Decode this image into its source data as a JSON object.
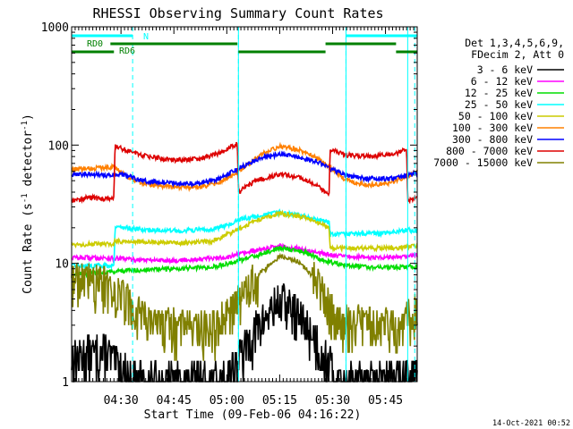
{
  "chart_data": {
    "type": "line",
    "title": "RHESSI Observing Summary Count Rates",
    "xlabel": "Start Time (09-Feb-06 04:16:22)",
    "ylabel": "Count Rate (s",
    "ylabel_sup1": "-1",
    "ylabel_mid": " detector",
    "ylabel_sup2": "-1",
    "ylabel_end": ")",
    "y_scale": "log",
    "x_range_minutes": [
      0,
      98
    ],
    "ylim": [
      1,
      1000
    ],
    "x_ticks": [
      {
        "minute": 14,
        "label": "04:30"
      },
      {
        "minute": 29,
        "label": "04:45"
      },
      {
        "minute": 44,
        "label": "05:00"
      },
      {
        "minute": 59,
        "label": "05:15"
      },
      {
        "minute": 74,
        "label": "05:30"
      },
      {
        "minute": 89,
        "label": "05:45"
      }
    ],
    "y_ticks": [
      {
        "value": 1,
        "label": "1"
      },
      {
        "value": 10,
        "label": "10"
      },
      {
        "value": 100,
        "label": "100"
      },
      {
        "value": 1000,
        "label": "1000"
      }
    ],
    "legend_header": [
      "Det 1,3,4,5,6,9,",
      "FDecim 2, Att 0"
    ],
    "series": [
      {
        "name": "3 - 6 keV",
        "color": "#000000",
        "points": [
          [
            0,
            1.6
          ],
          [
            5,
            1.7
          ],
          [
            10,
            1.8
          ],
          [
            12,
            1.5
          ],
          [
            18,
            1.0
          ],
          [
            30,
            1.0
          ],
          [
            43,
            1.0
          ],
          [
            48,
            1.7
          ],
          [
            53,
            3.0
          ],
          [
            58,
            4.5
          ],
          [
            60,
            4.8
          ],
          [
            63,
            4.0
          ],
          [
            68,
            2.6
          ],
          [
            72,
            1.6
          ],
          [
            76,
            1.0
          ],
          [
            88,
            1.0
          ],
          [
            95,
            1.2
          ],
          [
            98,
            1.3
          ]
        ]
      },
      {
        "name": "6 - 12 keV",
        "color": "#ff00ff",
        "points": [
          [
            0,
            11.2
          ],
          [
            10,
            11.1
          ],
          [
            12,
            11.0
          ],
          [
            20,
            10.7
          ],
          [
            30,
            10.6
          ],
          [
            40,
            11.0
          ],
          [
            44,
            11.3
          ],
          [
            52,
            12.8
          ],
          [
            59,
            14.0
          ],
          [
            65,
            13.2
          ],
          [
            72,
            12.0
          ],
          [
            76,
            11.5
          ],
          [
            86,
            11.2
          ],
          [
            95,
            11.5
          ],
          [
            98,
            11.8
          ]
        ]
      },
      {
        "name": "12 - 25 keV",
        "color": "#00dd00",
        "points": [
          [
            0,
            8.0
          ],
          [
            12,
            8.6
          ],
          [
            20,
            8.8
          ],
          [
            40,
            9.3
          ],
          [
            50,
            11.0
          ],
          [
            59,
            13.5
          ],
          [
            65,
            12.8
          ],
          [
            72,
            10.5
          ],
          [
            78,
            9.5
          ],
          [
            90,
            9.2
          ],
          [
            98,
            9.4
          ]
        ]
      },
      {
        "name": "25 - 50 keV",
        "color": "#00ffff",
        "points": [
          [
            0,
            9.5
          ],
          [
            12,
            9.6
          ],
          [
            12.3,
            20.5
          ],
          [
            20,
            19.3
          ],
          [
            30,
            18.8
          ],
          [
            40,
            19.5
          ],
          [
            44,
            21.0
          ],
          [
            48,
            23.5
          ],
          [
            59,
            27.0
          ],
          [
            66,
            25.0
          ],
          [
            73,
            22.0
          ],
          [
            73.3,
            17.5
          ],
          [
            80,
            17.8
          ],
          [
            90,
            18.0
          ],
          [
            95,
            19.2
          ],
          [
            98,
            19.0
          ]
        ]
      },
      {
        "name": "50 - 100 keV",
        "color": "#cccc00",
        "points": [
          [
            0,
            14.5
          ],
          [
            12,
            14.5
          ],
          [
            12.3,
            15.5
          ],
          [
            20,
            15.2
          ],
          [
            30,
            14.8
          ],
          [
            40,
            15.3
          ],
          [
            44,
            17.5
          ],
          [
            52,
            23.0
          ],
          [
            59,
            26.5
          ],
          [
            66,
            24.5
          ],
          [
            73,
            20.0
          ],
          [
            73.3,
            13.5
          ],
          [
            80,
            13.4
          ],
          [
            90,
            13.5
          ],
          [
            95,
            13.8
          ],
          [
            98,
            14.0
          ]
        ]
      },
      {
        "name": "100 - 300 keV",
        "color": "#ff8000",
        "points": [
          [
            0,
            62
          ],
          [
            8,
            64
          ],
          [
            12,
            66
          ],
          [
            15,
            56
          ],
          [
            20,
            48
          ],
          [
            28,
            44
          ],
          [
            36,
            44
          ],
          [
            42,
            48
          ],
          [
            48,
            62
          ],
          [
            54,
            84
          ],
          [
            59,
            97
          ],
          [
            64,
            92
          ],
          [
            70,
            76
          ],
          [
            74,
            62
          ],
          [
            78,
            50
          ],
          [
            84,
            46
          ],
          [
            90,
            48
          ],
          [
            95,
            54
          ],
          [
            98,
            60
          ]
        ]
      },
      {
        "name": "300 - 800 keV",
        "color": "#0000ff",
        "points": [
          [
            0,
            56
          ],
          [
            5,
            57
          ],
          [
            10,
            55
          ],
          [
            12,
            56
          ],
          [
            15,
            56
          ],
          [
            20,
            50
          ],
          [
            28,
            48
          ],
          [
            36,
            47
          ],
          [
            42,
            52
          ],
          [
            48,
            65
          ],
          [
            54,
            78
          ],
          [
            59,
            84
          ],
          [
            64,
            80
          ],
          [
            70,
            72
          ],
          [
            74,
            62
          ],
          [
            78,
            55
          ],
          [
            84,
            52
          ],
          [
            90,
            52
          ],
          [
            95,
            55
          ],
          [
            98,
            58
          ]
        ]
      },
      {
        "name": "800 - 7000 keV",
        "color": "#dd0000",
        "points": [
          [
            0,
            34
          ],
          [
            5,
            36
          ],
          [
            10,
            35
          ],
          [
            12,
            36
          ],
          [
            12.3,
            98
          ],
          [
            15,
            92
          ],
          [
            20,
            82
          ],
          [
            28,
            75
          ],
          [
            36,
            76
          ],
          [
            42,
            86
          ],
          [
            44,
            92
          ],
          [
            47,
            103
          ],
          [
            47.3,
            40
          ],
          [
            52,
            50
          ],
          [
            59,
            57
          ],
          [
            65,
            53
          ],
          [
            70,
            45
          ],
          [
            73,
            37
          ],
          [
            73.3,
            92
          ],
          [
            78,
            82
          ],
          [
            85,
            80
          ],
          [
            92,
            85
          ],
          [
            95,
            93
          ],
          [
            95.3,
            34
          ],
          [
            98,
            36
          ]
        ]
      },
      {
        "name": "7000 - 15000 keV",
        "color": "#808000",
        "points": [
          [
            0,
            7.2
          ],
          [
            10,
            6.8
          ],
          [
            14,
            5.5
          ],
          [
            18,
            4.0
          ],
          [
            22,
            3.0
          ],
          [
            30,
            2.9
          ],
          [
            40,
            2.8
          ],
          [
            44,
            3.5
          ],
          [
            48,
            5.0
          ],
          [
            53,
            8.0
          ],
          [
            59,
            11.5
          ],
          [
            64,
            10.5
          ],
          [
            68,
            8.0
          ],
          [
            72,
            5.0
          ],
          [
            76,
            3.2
          ],
          [
            85,
            3.0
          ],
          [
            92,
            3.0
          ],
          [
            96,
            3.6
          ],
          [
            98,
            3.9
          ]
        ]
      }
    ],
    "vlines_solid_minutes": [
      0,
      47.3,
      77.8,
      95.3
    ],
    "vlines_dashed_minutes": [
      17.3,
      47.3,
      77.8,
      97.3
    ],
    "flag_bars": [
      {
        "label": "N",
        "color": "#00ffff",
        "segments": [
          [
            0,
            17.3
          ],
          [
            77.8,
            98
          ]
        ]
      },
      {
        "label": "RD0",
        "color": "#008000",
        "segments": [
          [
            11,
            47
          ],
          [
            72,
            92
          ]
        ]
      },
      {
        "label": "RD6",
        "color": "#008000",
        "segments": [
          [
            0,
            12
          ],
          [
            47.3,
            72
          ],
          [
            92,
            98
          ]
        ]
      }
    ]
  },
  "footer": {
    "timestamp": "14-Oct-2021 00:52"
  }
}
